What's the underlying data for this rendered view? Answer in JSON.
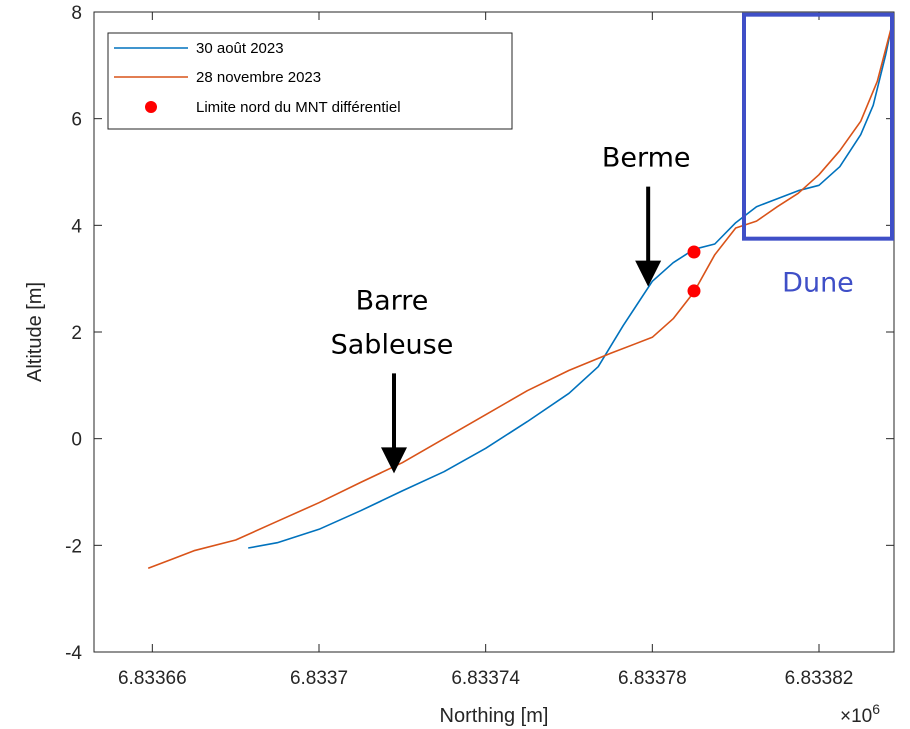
{
  "chart_data": {
    "type": "line",
    "title": "",
    "xlabel": "Northing [m]",
    "ylabel": "Altitude [m]",
    "x_exponent_label": "×10",
    "x_exponent_power": "6",
    "xlim": [
      6833646,
      6833838
    ],
    "ylim": [
      -4,
      8
    ],
    "xticks": [
      6833660,
      6833700,
      6833740,
      6833780,
      6833820
    ],
    "xtick_labels": [
      "6.83366",
      "6.8337",
      "6.83374",
      "6.83378",
      "6.83382"
    ],
    "yticks": [
      -4,
      -2,
      0,
      2,
      4,
      6,
      8
    ],
    "ytick_labels": [
      "-4",
      "-2",
      "0",
      "2",
      "4",
      "6",
      "8"
    ],
    "grid": false,
    "legend_position": "top-left",
    "series": [
      {
        "name": "30 août 2023",
        "color": "#0072bd",
        "points": [
          [
            6833683,
            -2.05
          ],
          [
            6833690,
            -1.95
          ],
          [
            6833700,
            -1.7
          ],
          [
            6833710,
            -1.35
          ],
          [
            6833720,
            -0.98
          ],
          [
            6833730,
            -0.62
          ],
          [
            6833740,
            -0.18
          ],
          [
            6833750,
            0.32
          ],
          [
            6833760,
            0.85
          ],
          [
            6833767,
            1.35
          ],
          [
            6833773,
            2.12
          ],
          [
            6833780,
            2.95
          ],
          [
            6833785,
            3.3
          ],
          [
            6833790,
            3.55
          ],
          [
            6833795,
            3.65
          ],
          [
            6833800,
            4.05
          ],
          [
            6833805,
            4.35
          ],
          [
            6833810,
            4.5
          ],
          [
            6833815,
            4.65
          ],
          [
            6833820,
            4.75
          ],
          [
            6833825,
            5.1
          ],
          [
            6833830,
            5.7
          ],
          [
            6833833,
            6.25
          ],
          [
            6833836,
            7.2
          ],
          [
            6833837.5,
            7.75
          ]
        ]
      },
      {
        "name": "28 novembre 2023",
        "color": "#d95319",
        "points": [
          [
            6833659,
            -2.43
          ],
          [
            6833665,
            -2.25
          ],
          [
            6833670,
            -2.1
          ],
          [
            6833680,
            -1.9
          ],
          [
            6833690,
            -1.55
          ],
          [
            6833700,
            -1.2
          ],
          [
            6833710,
            -0.82
          ],
          [
            6833720,
            -0.45
          ],
          [
            6833730,
            0.0
          ],
          [
            6833740,
            0.45
          ],
          [
            6833750,
            0.9
          ],
          [
            6833760,
            1.28
          ],
          [
            6833770,
            1.6
          ],
          [
            6833780,
            1.9
          ],
          [
            6833785,
            2.25
          ],
          [
            6833790,
            2.75
          ],
          [
            6833795,
            3.45
          ],
          [
            6833800,
            3.95
          ],
          [
            6833805,
            4.08
          ],
          [
            6833810,
            4.35
          ],
          [
            6833815,
            4.6
          ],
          [
            6833820,
            4.95
          ],
          [
            6833825,
            5.4
          ],
          [
            6833830,
            5.95
          ],
          [
            6833834,
            6.7
          ],
          [
            6833837.5,
            7.75
          ]
        ]
      },
      {
        "name": "Limite nord du MNT différentiel",
        "color": "#ff0000",
        "marker": "circle",
        "points": [
          [
            6833790,
            3.5
          ],
          [
            6833790,
            2.77
          ]
        ]
      }
    ],
    "annotations": [
      {
        "label_lines": [
          "Barre",
          "Sableuse"
        ],
        "arrow_tip": [
          6833718,
          -0.65
        ]
      },
      {
        "label_lines": [
          "Berme"
        ],
        "arrow_tip": [
          6833779,
          2.85
        ]
      }
    ],
    "highlight_box": {
      "label": "Dune",
      "color": "#3f4fc7",
      "x_range": [
        6833802,
        6833838
      ],
      "y_range": [
        3.75,
        7.95
      ]
    }
  }
}
